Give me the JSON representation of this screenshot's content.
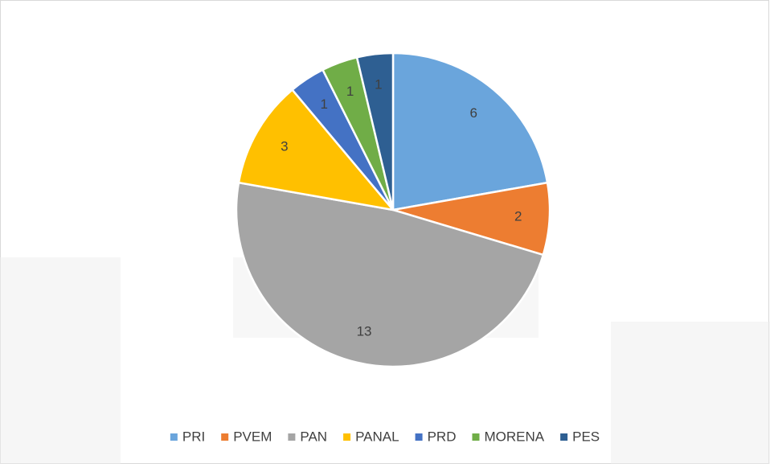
{
  "chart_data": {
    "type": "pie",
    "categories": [
      "PRI",
      "PVEM",
      "PAN",
      "PANAL",
      "PRD",
      "MORENA",
      "PES"
    ],
    "values": [
      6,
      2,
      13,
      3,
      1,
      1,
      1
    ],
    "colors": [
      "#6aa5dc",
      "#ed7d31",
      "#a5a5a5",
      "#ffc000",
      "#4472c4",
      "#70ad47",
      "#2e5f92"
    ],
    "legend": "bottom"
  }
}
